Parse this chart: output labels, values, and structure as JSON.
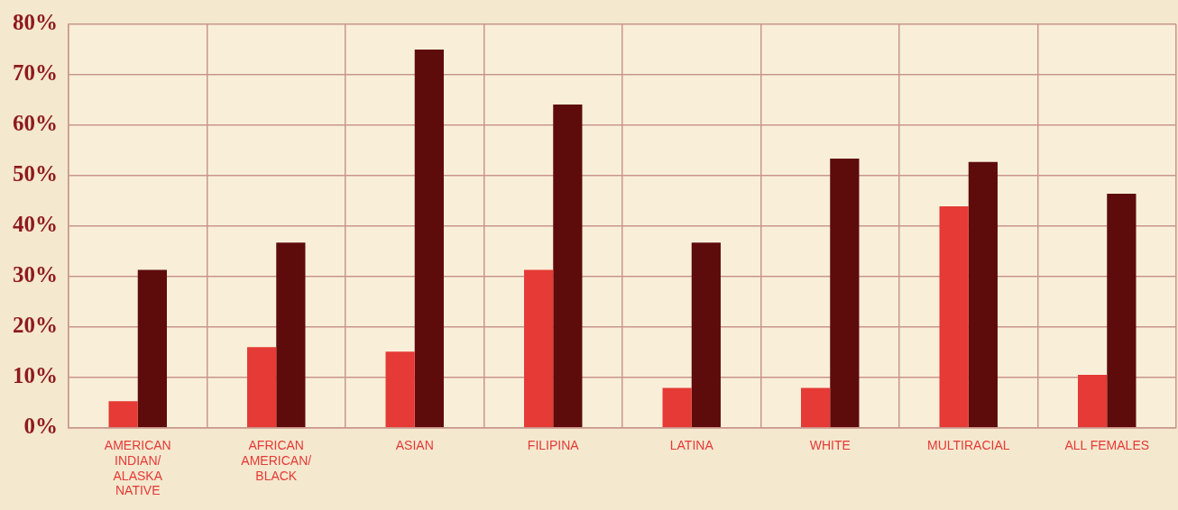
{
  "chart_data": {
    "type": "bar",
    "categories": [
      "AMERICAN INDIAN/ALASKA NATIVE",
      "AFRICAN AMERICAN/BLACK",
      "ASIAN",
      "FILIPINA",
      "LATINA",
      "WHITE",
      "MULTIRACIAL",
      "ALL FEMALES"
    ],
    "series": [
      {
        "color": "#e53a35",
        "values": [
          5.3,
          16,
          15.1,
          31.3,
          7.9,
          7.9,
          43.9,
          10.5
        ]
      },
      {
        "color": "#5e0b0c",
        "values": [
          31.3,
          36.7,
          75,
          64.1,
          36.7,
          53.4,
          52.7,
          46.4
        ]
      }
    ],
    "ylim": [
      0,
      80
    ],
    "yticks": [
      {
        "value": 0,
        "label": "0%"
      },
      {
        "value": 10,
        "label": "10%"
      },
      {
        "value": 20,
        "label": "20%"
      },
      {
        "value": 30,
        "label": "30%"
      },
      {
        "value": 40,
        "label": "40%"
      },
      {
        "value": 50,
        "label": "50%"
      },
      {
        "value": 60,
        "label": "60%"
      },
      {
        "value": 70,
        "label": "70%"
      },
      {
        "value": 80,
        "label": "80%"
      }
    ],
    "grid": true,
    "legend": false
  }
}
